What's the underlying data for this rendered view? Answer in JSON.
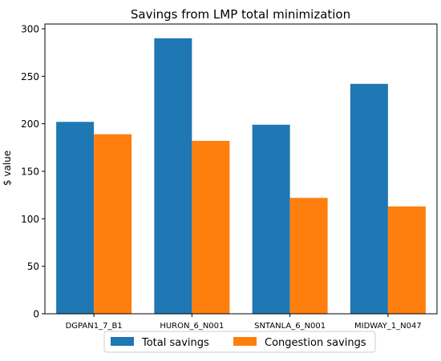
{
  "chart_data": {
    "type": "bar",
    "title": "Savings from LMP total minimization",
    "xlabel": "",
    "ylabel": "$ value",
    "ylim": [
      0,
      305
    ],
    "yticks": [
      0,
      50,
      100,
      150,
      200,
      250,
      300
    ],
    "categories": [
      "DGPAN1_7_B1",
      "HURON_6_N001",
      "SNTANLA_6_N001",
      "MIDWAY_1_N047"
    ],
    "series": [
      {
        "name": "Total savings",
        "color": "#1f77b4",
        "values": [
          202,
          290,
          199,
          242
        ]
      },
      {
        "name": "Congestion savings",
        "color": "#ff7f0e",
        "values": [
          189,
          182,
          122,
          113
        ]
      }
    ],
    "legend": "bottom-center",
    "grid": false
  }
}
